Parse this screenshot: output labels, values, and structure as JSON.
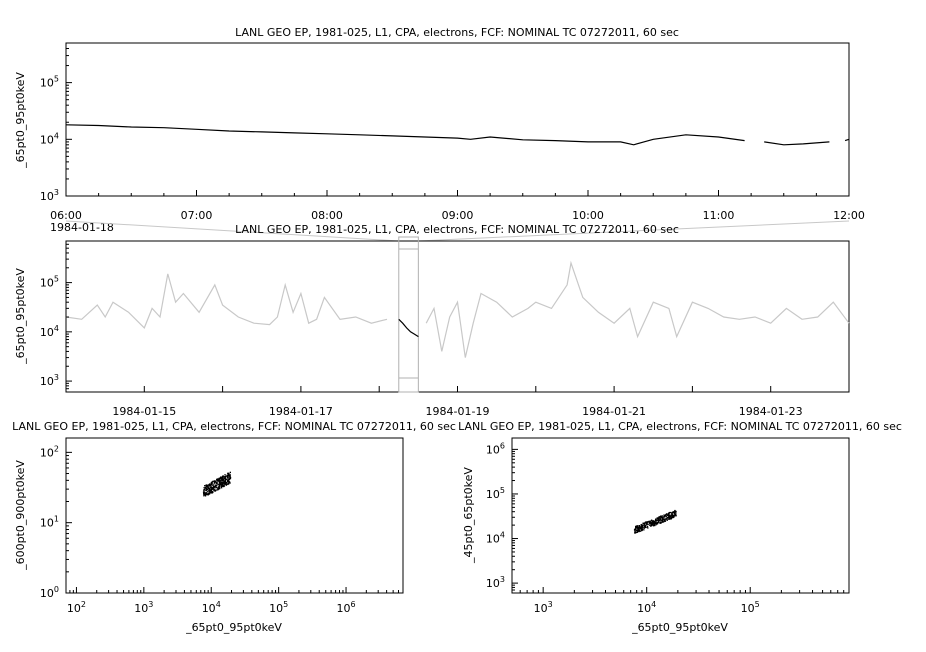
{
  "chart_data": [
    {
      "type": "line",
      "title": "LANL GEO EP, 1981-025, L1, CPA, electrons, FCF: NOMINAL TC 07272011, 60 sec",
      "ylabel": "_65pt0_95pt0keV",
      "yscale": "log",
      "ylim": [
        1000,
        500000
      ],
      "y_ticks": [
        {
          "mant": "10",
          "exp": "3"
        },
        {
          "mant": "10",
          "exp": "4"
        },
        {
          "mant": "10",
          "exp": "5"
        }
      ],
      "x_ticks": [
        "06:00",
        "07:00",
        "08:00",
        "09:00",
        "10:00",
        "11:00",
        "12:00"
      ],
      "x_date_label": "1984-01-18",
      "xlim_hours": [
        6,
        12
      ],
      "series": [
        {
          "color": "#000000",
          "x": [
            6.0,
            6.25,
            6.5,
            6.75,
            7.0,
            7.25,
            7.5,
            7.75,
            8.0,
            8.25,
            8.5,
            8.75,
            9.0,
            9.1,
            9.25,
            9.5,
            9.75,
            10.0,
            10.25,
            10.35,
            10.5,
            10.75,
            11.0,
            11.2
          ],
          "y": [
            18000,
            17500,
            16500,
            16000,
            15000,
            14000,
            13500,
            13000,
            12500,
            12000,
            11500,
            11000,
            10500,
            10000,
            11000,
            9800,
            9500,
            9000,
            9000,
            8000,
            10000,
            12000,
            11000,
            9500
          ]
        },
        {
          "color": "#000000",
          "x": [
            11.35,
            11.5,
            11.65,
            11.85
          ],
          "y": [
            9000,
            8000,
            8300,
            9000
          ]
        },
        {
          "color": "#000000",
          "x": [
            11.97,
            12.0
          ],
          "y": [
            9500,
            10000
          ]
        }
      ]
    },
    {
      "type": "line",
      "title": "LANL GEO EP, 1981-025, L1, CPA, electrons, FCF: NOMINAL TC 07272011, 60 sec",
      "ylabel": "_65pt0_95pt0keV",
      "yscale": "log",
      "ylim": [
        600,
        700000
      ],
      "y_ticks": [
        {
          "mant": "10",
          "exp": "3"
        },
        {
          "mant": "10",
          "exp": "4"
        },
        {
          "mant": "10",
          "exp": "5"
        }
      ],
      "x_ticks": [
        "1984-01-15",
        "1984-01-17",
        "1984-01-19",
        "1984-01-21",
        "1984-01-23"
      ],
      "xlim_days": [
        14,
        24
      ],
      "highlight_days": [
        18.25,
        18.5
      ],
      "series": [
        {
          "color": "#c8c8c8",
          "x": [
            14.0,
            14.2,
            14.4,
            14.5,
            14.6,
            14.8,
            15.0,
            15.1,
            15.2,
            15.3,
            15.4,
            15.5,
            15.7,
            15.9,
            16.0,
            16.2,
            16.4,
            16.6,
            16.7,
            16.8,
            16.9,
            17.0,
            17.1,
            17.2,
            17.3,
            17.5,
            17.7,
            17.9,
            18.1
          ],
          "y": [
            20000,
            18000,
            35000,
            20000,
            40000,
            25000,
            12000,
            30000,
            20000,
            150000,
            40000,
            60000,
            25000,
            90000,
            35000,
            20000,
            15000,
            14000,
            20000,
            90000,
            25000,
            60000,
            15000,
            18000,
            50000,
            18000,
            20000,
            15000,
            18000
          ]
        },
        {
          "color": "#000000",
          "x": [
            18.25,
            18.3,
            18.35,
            18.4,
            18.45,
            18.5
          ],
          "y": [
            18000,
            15000,
            12000,
            10000,
            9000,
            8000
          ]
        },
        {
          "color": "#c8c8c8",
          "x": [
            18.6,
            18.7,
            18.8,
            18.9,
            19.0,
            19.1,
            19.2,
            19.3,
            19.5,
            19.7,
            19.9,
            20.0,
            20.2,
            20.4,
            20.45,
            20.6,
            20.8,
            21.0,
            21.2,
            21.3,
            21.5,
            21.7,
            21.8,
            22.0,
            22.2,
            22.4,
            22.6,
            22.8,
            23.0,
            23.2,
            23.4,
            23.6,
            23.8,
            24.0
          ],
          "y": [
            15000,
            30000,
            4000,
            20000,
            40000,
            3000,
            15000,
            60000,
            40000,
            20000,
            30000,
            40000,
            30000,
            90000,
            250000,
            50000,
            25000,
            15000,
            30000,
            8000,
            40000,
            30000,
            8000,
            40000,
            30000,
            20000,
            18000,
            20000,
            15000,
            30000,
            18000,
            20000,
            40000,
            15000
          ]
        }
      ]
    },
    {
      "type": "scatter",
      "title": "LANL GEO EP, 1981-025, L1, CPA, electrons, FCF: NOMINAL TC 07272011, 60 sec",
      "xlabel": "_65pt0_95pt0keV",
      "ylabel": "_600pt0_900pt0keV",
      "xscale": "log",
      "yscale": "log",
      "xlim": [
        70,
        7000000
      ],
      "ylim": [
        1,
        160
      ],
      "x_ticks": [
        {
          "mant": "10",
          "exp": "2"
        },
        {
          "mant": "10",
          "exp": "3"
        },
        {
          "mant": "10",
          "exp": "4"
        },
        {
          "mant": "10",
          "exp": "5"
        },
        {
          "mant": "10",
          "exp": "6"
        }
      ],
      "y_ticks": [
        {
          "mant": "10",
          "exp": "0"
        },
        {
          "mant": "10",
          "exp": "1"
        },
        {
          "mant": "10",
          "exp": "2"
        }
      ],
      "x_range": [
        7500,
        19000
      ],
      "y_center": [
        28,
        45
      ],
      "point_count": 360
    },
    {
      "type": "scatter",
      "title": "LANL GEO EP, 1981-025, L1, CPA, electrons, FCF: NOMINAL TC 07272011, 60 sec",
      "xlabel": "_65pt0_95pt0keV",
      "ylabel": "_45pt0_65pt0keV",
      "xscale": "log",
      "yscale": "log",
      "xlim": [
        500,
        900000
      ],
      "ylim": [
        600,
        1800000
      ],
      "x_ticks": [
        {
          "mant": "10",
          "exp": "3"
        },
        {
          "mant": "10",
          "exp": "4"
        },
        {
          "mant": "10",
          "exp": "5"
        }
      ],
      "y_ticks": [
        {
          "mant": "10",
          "exp": "3"
        },
        {
          "mant": "10",
          "exp": "4"
        },
        {
          "mant": "10",
          "exp": "5"
        },
        {
          "mant": "10",
          "exp": "6"
        }
      ],
      "x_range": [
        7500,
        19000
      ],
      "y_center": [
        16000,
        38000
      ],
      "point_count": 360
    }
  ]
}
